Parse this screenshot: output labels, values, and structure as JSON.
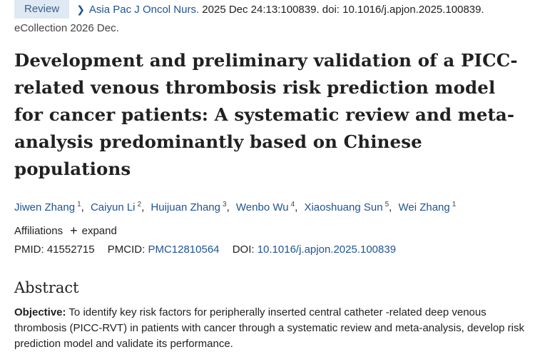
{
  "article_type": "Review",
  "citation": {
    "journal": "Asia Pac J Oncol Nurs.",
    "details": " 2025 Dec 24:13:100839. doi: 10.1016/j.apjon.2025.100839.",
    "ecollection": "eCollection 2026 Dec."
  },
  "title": "Development and preliminary validation of a PICC-related venous thrombosis risk prediction model for cancer patients: A systematic review and meta-analysis predominantly based on Chinese populations",
  "authors": [
    {
      "name": "Jiwen Zhang",
      "aff": "1"
    },
    {
      "name": "Caiyun Li",
      "aff": "2"
    },
    {
      "name": "Huijuan Zhang",
      "aff": "3"
    },
    {
      "name": "Wenbo Wu",
      "aff": "4"
    },
    {
      "name": "Xiaoshuang Sun",
      "aff": "5"
    },
    {
      "name": "Wei Zhang",
      "aff": "1"
    }
  ],
  "affiliations": {
    "label": "Affiliations",
    "expand": "expand"
  },
  "ids": {
    "pmid_label": "PMID:",
    "pmid": "41552715",
    "pmcid_label": "PMCID:",
    "pmcid": "PMC12810564",
    "doi_label": "DOI:",
    "doi": "10.1016/j.apjon.2025.100839"
  },
  "abstract": {
    "heading": "Abstract",
    "objective_label": "Objective:",
    "objective_text": " To identify key risk factors for peripherally inserted central catheter -related deep venous thrombosis (PICC-RVT) in patients with cancer through a systematic review and meta-analysis, develop risk prediction model and validate its performance."
  }
}
